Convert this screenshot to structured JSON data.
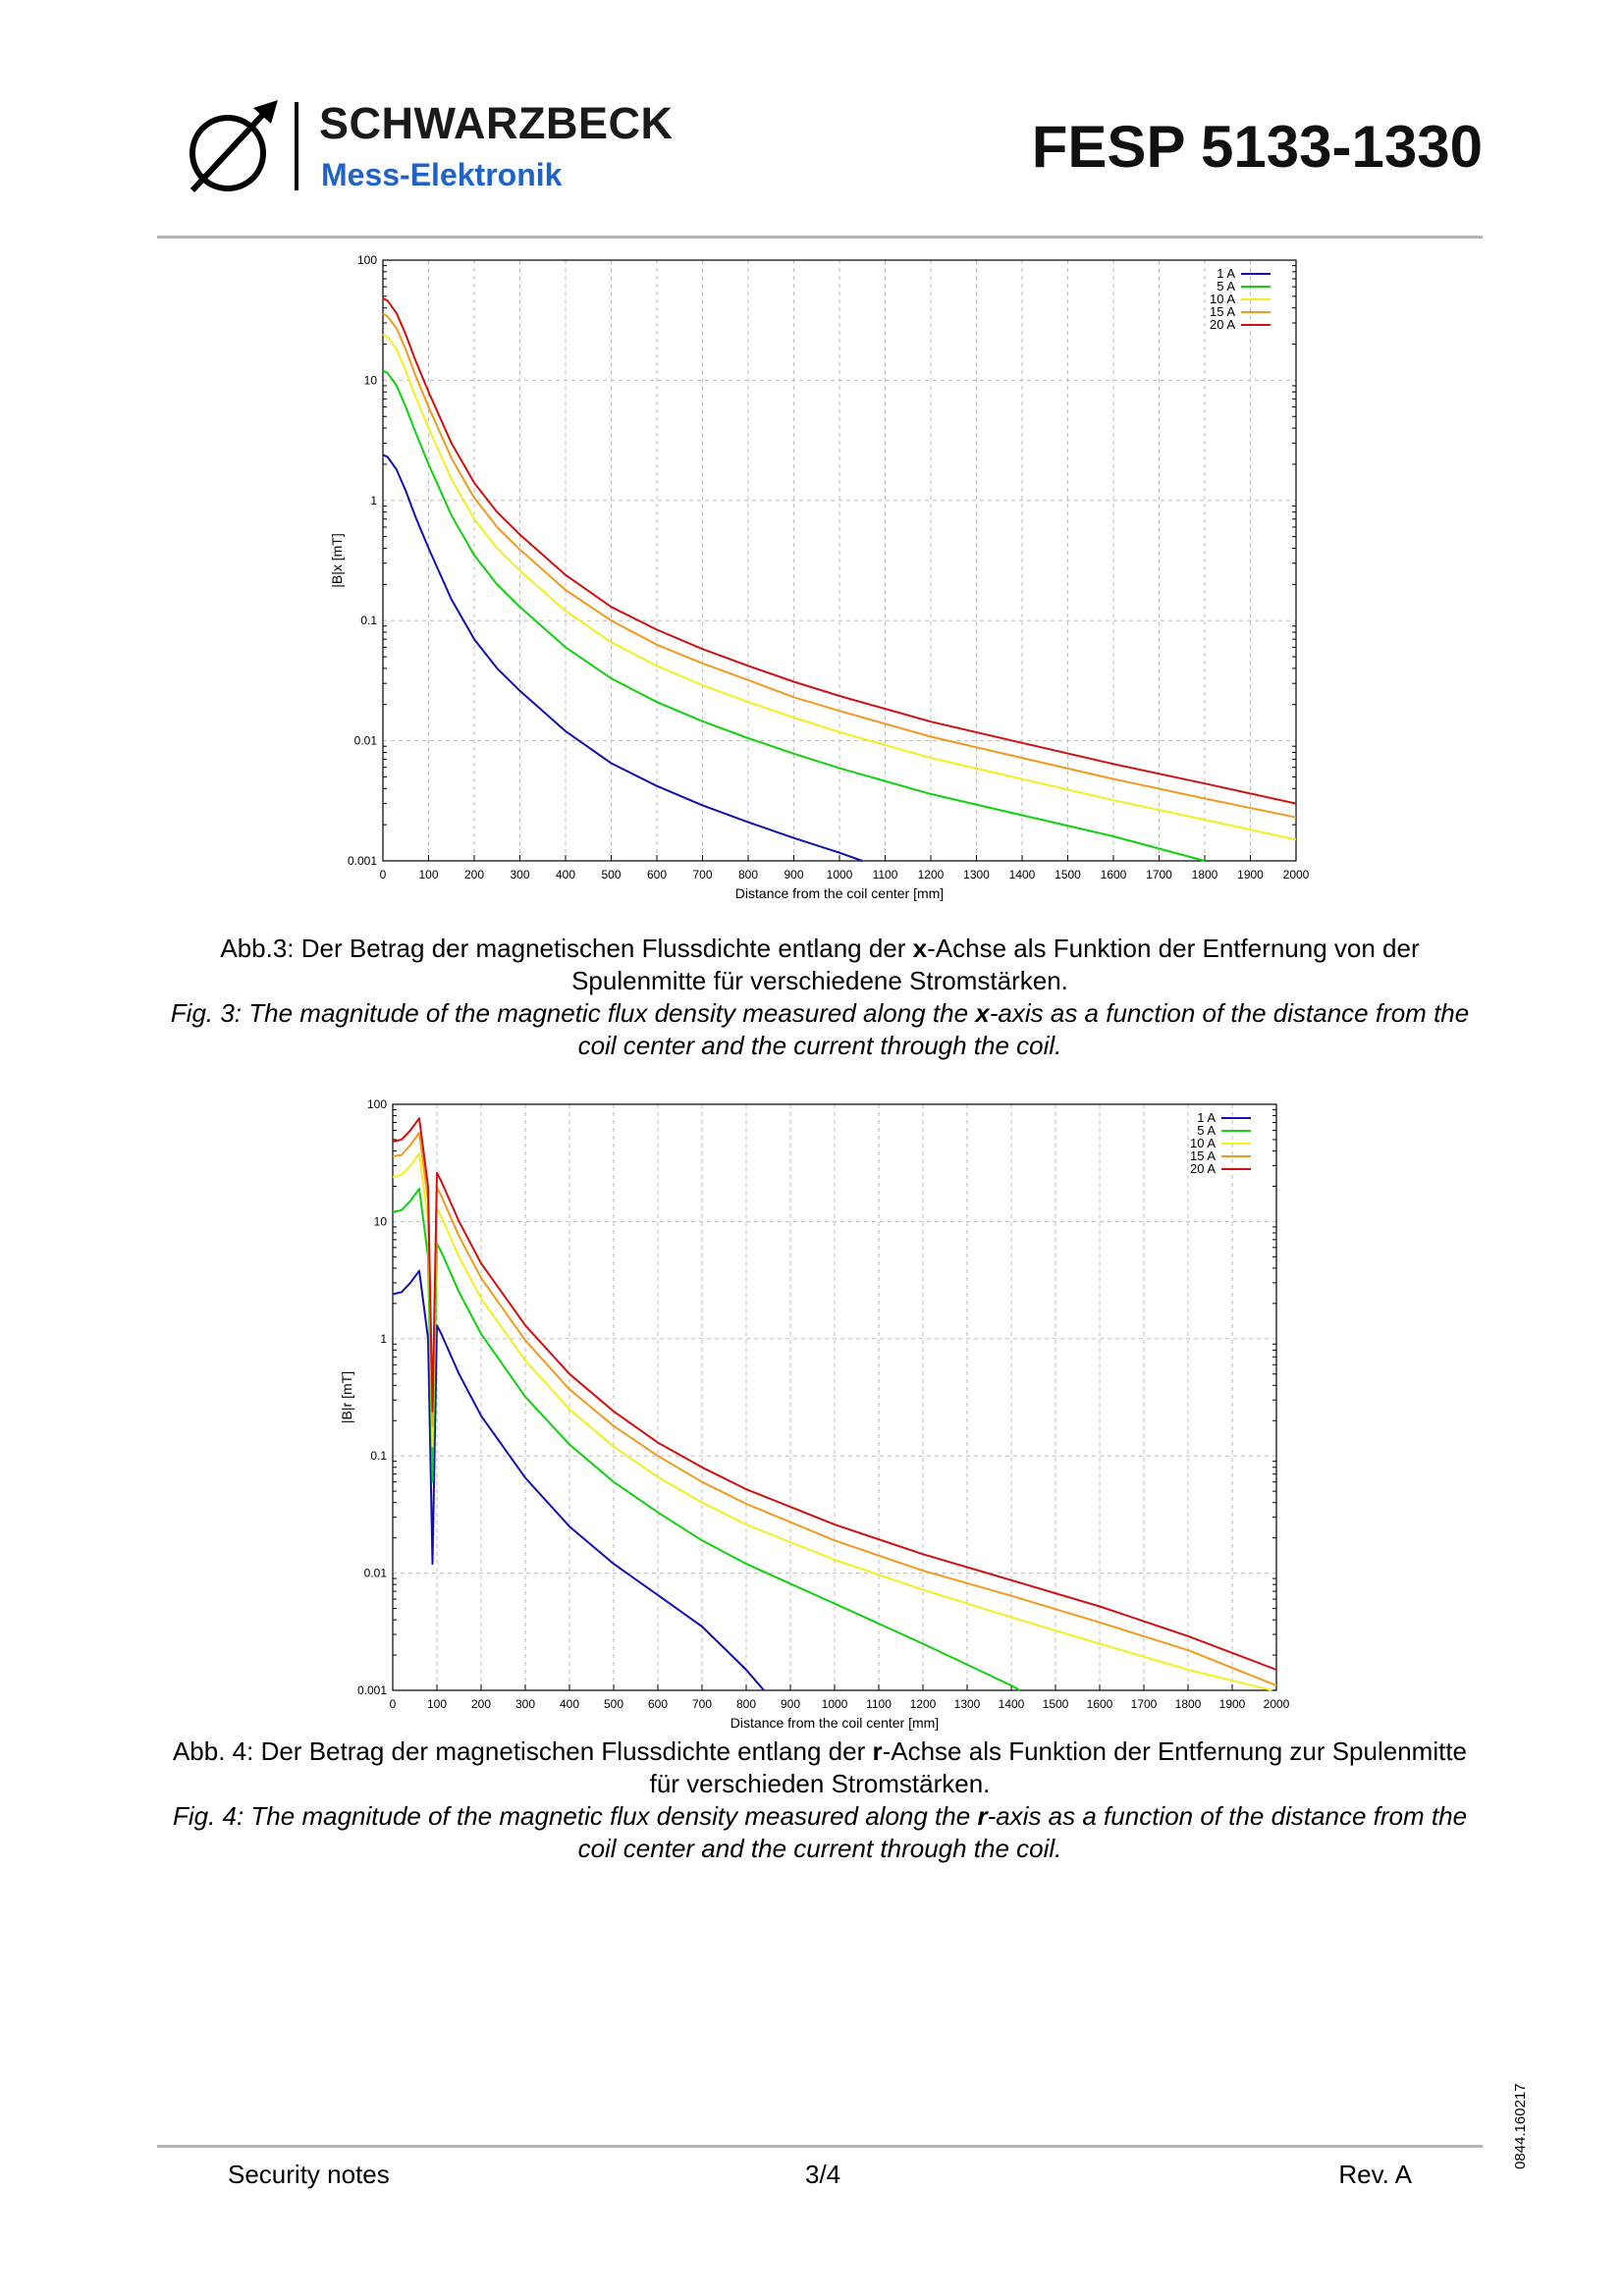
{
  "header": {
    "brand": "SCHWARZBECK",
    "brand_sub": "Mess-Elektronik",
    "doc_code": "FESP 5133-1330"
  },
  "chart_data": [
    {
      "type": "line",
      "ylabel": "|B|x [mT]",
      "xlabel": "Distance from the coil center  [mm]",
      "xlim": [
        0,
        2000
      ],
      "ylim": [
        0.001,
        100
      ],
      "yscale": "log",
      "xticks": [
        "0",
        "100",
        "200",
        "300",
        "400",
        "500",
        "600",
        "700",
        "800",
        "900",
        "1000",
        "1100",
        "1200",
        "1300",
        "1400",
        "1500",
        "1600",
        "1700",
        "1800",
        "1900",
        "2000"
      ],
      "yticks": [
        "0.001",
        "0.01",
        "0.1",
        "1",
        "10",
        "100"
      ],
      "legend": "top-right",
      "series": [
        {
          "name": "1 A",
          "color": "#1010b0",
          "x": [
            0,
            10,
            30,
            50,
            70,
            100,
            150,
            200,
            250,
            300,
            400,
            500,
            600,
            700,
            800,
            900,
            1000,
            1050
          ],
          "y": [
            2.4,
            2.3,
            1.8,
            1.2,
            0.75,
            0.4,
            0.15,
            0.07,
            0.04,
            0.026,
            0.012,
            0.0065,
            0.0042,
            0.0029,
            0.0021,
            0.00155,
            0.00117,
            0.001
          ]
        },
        {
          "name": "5 A",
          "color": "#10d010",
          "x": [
            0,
            10,
            30,
            50,
            70,
            100,
            150,
            200,
            250,
            300,
            400,
            500,
            600,
            700,
            800,
            900,
            1000,
            1200,
            1400,
            1600,
            1800
          ],
          "y": [
            12,
            11.5,
            9,
            6,
            3.8,
            2,
            0.75,
            0.35,
            0.2,
            0.13,
            0.06,
            0.033,
            0.021,
            0.0145,
            0.0105,
            0.0078,
            0.0059,
            0.0036,
            0.0024,
            0.0016,
            0.001
          ]
        },
        {
          "name": "10 A",
          "color": "#f0f020",
          "x": [
            0,
            10,
            30,
            50,
            70,
            100,
            150,
            200,
            250,
            300,
            400,
            500,
            600,
            700,
            800,
            900,
            1000,
            1200,
            1400,
            1600,
            1800,
            2000
          ],
          "y": [
            24,
            23,
            18,
            12,
            7.5,
            4,
            1.5,
            0.7,
            0.4,
            0.26,
            0.12,
            0.066,
            0.042,
            0.029,
            0.021,
            0.0156,
            0.0118,
            0.0072,
            0.0048,
            0.0032,
            0.0022,
            0.0015
          ]
        },
        {
          "name": "15 A",
          "color": "#f09a20",
          "x": [
            0,
            10,
            30,
            50,
            70,
            100,
            150,
            200,
            250,
            300,
            400,
            500,
            600,
            700,
            800,
            900,
            1000,
            1200,
            1400,
            1600,
            1800,
            2000
          ],
          "y": [
            36,
            34,
            27,
            18,
            11.3,
            6,
            2.25,
            1.05,
            0.6,
            0.39,
            0.18,
            0.1,
            0.063,
            0.044,
            0.032,
            0.023,
            0.0177,
            0.0108,
            0.0072,
            0.0048,
            0.0033,
            0.0023
          ]
        },
        {
          "name": "20 A",
          "color": "#d01010",
          "x": [
            0,
            10,
            30,
            50,
            70,
            100,
            150,
            200,
            250,
            300,
            400,
            500,
            600,
            700,
            800,
            900,
            1000,
            1200,
            1400,
            1600,
            1800,
            2000
          ],
          "y": [
            48,
            46,
            36,
            24,
            15,
            8,
            3,
            1.4,
            0.8,
            0.52,
            0.24,
            0.13,
            0.084,
            0.058,
            0.042,
            0.031,
            0.0236,
            0.0144,
            0.0096,
            0.0064,
            0.0044,
            0.003
          ]
        }
      ]
    },
    {
      "type": "line",
      "ylabel": "|B|r [mT]",
      "xlabel": "Distance from the coil center  [mm]",
      "xlim": [
        0,
        2000
      ],
      "ylim": [
        0.001,
        100
      ],
      "yscale": "log",
      "xticks": [
        "0",
        "100",
        "200",
        "300",
        "400",
        "500",
        "600",
        "700",
        "800",
        "900",
        "1000",
        "1100",
        "1200",
        "1300",
        "1400",
        "1500",
        "1600",
        "1700",
        "1800",
        "1900",
        "2000"
      ],
      "yticks": [
        "0.001",
        "0.01",
        "0.1",
        "1",
        "10",
        "100"
      ],
      "legend": "top-right",
      "series": [
        {
          "name": "1 A",
          "color": "#1010b0",
          "x": [
            0,
            20,
            40,
            60,
            80,
            90,
            100,
            110,
            150,
            200,
            300,
            400,
            500,
            600,
            700,
            800,
            840
          ],
          "y": [
            2.4,
            2.5,
            3,
            3.8,
            1.0,
            0.012,
            1.3,
            1.1,
            0.5,
            0.22,
            0.065,
            0.025,
            0.012,
            0.0065,
            0.0035,
            0.0015,
            0.001
          ]
        },
        {
          "name": "5 A",
          "color": "#10d010",
          "x": [
            0,
            20,
            40,
            60,
            80,
            90,
            100,
            110,
            150,
            200,
            300,
            400,
            500,
            600,
            700,
            800,
            1000,
            1200,
            1400,
            1420
          ],
          "y": [
            12,
            12.5,
            15,
            19,
            5,
            0.06,
            6.5,
            5.5,
            2.5,
            1.1,
            0.32,
            0.125,
            0.06,
            0.033,
            0.019,
            0.012,
            0.0055,
            0.0025,
            0.0011,
            0.001
          ]
        },
        {
          "name": "10 A",
          "color": "#f0f020",
          "x": [
            0,
            20,
            40,
            60,
            80,
            90,
            100,
            110,
            150,
            200,
            300,
            400,
            500,
            600,
            700,
            800,
            1000,
            1200,
            1400,
            1600,
            1800,
            1990
          ],
          "y": [
            24,
            25,
            30,
            38,
            10,
            0.12,
            13,
            11,
            5,
            2.2,
            0.65,
            0.25,
            0.12,
            0.066,
            0.04,
            0.026,
            0.013,
            0.0072,
            0.0042,
            0.0025,
            0.0015,
            0.001
          ]
        },
        {
          "name": "15 A",
          "color": "#f09a20",
          "x": [
            0,
            20,
            40,
            60,
            80,
            90,
            100,
            110,
            150,
            200,
            300,
            400,
            500,
            600,
            700,
            800,
            1000,
            1200,
            1400,
            1600,
            1800,
            2000
          ],
          "y": [
            36,
            37,
            45,
            57,
            15,
            0.18,
            19.5,
            16.5,
            7.5,
            3.3,
            0.97,
            0.37,
            0.18,
            0.1,
            0.06,
            0.039,
            0.019,
            0.0105,
            0.0064,
            0.0038,
            0.0022,
            0.0011
          ]
        },
        {
          "name": "20 A",
          "color": "#d01010",
          "x": [
            0,
            20,
            40,
            60,
            80,
            90,
            100,
            110,
            150,
            200,
            300,
            400,
            500,
            600,
            700,
            800,
            1000,
            1200,
            1400,
            1600,
            1800,
            2000
          ],
          "y": [
            48,
            50,
            60,
            76,
            20,
            0.24,
            26,
            22,
            10,
            4.4,
            1.3,
            0.5,
            0.24,
            0.13,
            0.08,
            0.052,
            0.026,
            0.0145,
            0.0087,
            0.0052,
            0.0029,
            0.0015
          ]
        }
      ]
    }
  ],
  "captions": {
    "fig3_de_pre": "Abb.3: Der Betrag der magnetischen Flussdichte entlang der ",
    "fig3_de_axis": "x",
    "fig3_de_post": "-Achse als Funktion der Entfernung von der Spulenmitte für verschiedene Stromstärken.",
    "fig3_en_pre": "Fig. 3: The magnitude of the magnetic flux density measured along the ",
    "fig3_en_axis": "x",
    "fig3_en_post": "-axis as a function of the distance from the coil center and the current through the coil.",
    "fig4_de_pre": "Abb. 4: Der Betrag der magnetischen Flussdichte entlang der ",
    "fig4_de_axis": "r",
    "fig4_de_post": "-Achse als Funktion der Entfernung zur Spulenmitte für verschieden Stromstärken.",
    "fig4_en_pre": "Fig. 4: The magnitude of the magnetic flux density measured along the ",
    "fig4_en_axis": "r",
    "fig4_en_post": "-axis as a function of the distance from the coil center and the current through the coil. "
  },
  "footer": {
    "left": "Security notes",
    "page": "3/4",
    "rev": "Rev. A",
    "doc_id": "0844.160217"
  }
}
